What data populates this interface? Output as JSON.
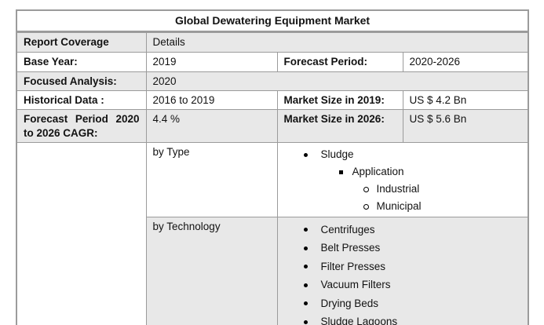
{
  "table": {
    "title": "Global Dewatering Equipment Market",
    "rows": {
      "report_coverage": {
        "label": "Report Coverage",
        "value": "Details"
      },
      "base_year": {
        "label": "Base Year:",
        "value": "2019"
      },
      "forecast_period": {
        "label": "Forecast Period:",
        "value": "2020-2026"
      },
      "focused_analysis": {
        "label": "Focused Analysis:",
        "value": "2020"
      },
      "historical_data": {
        "label": "Historical Data :",
        "value": "2016 to 2019"
      },
      "market_size_2019": {
        "label": "Market Size in 2019:",
        "value": "US $ 4.2 Bn"
      },
      "forecast_cagr": {
        "label": "Forecast Period 2020 to 2026 CAGR:",
        "value": "4.4 %"
      },
      "market_size_2026": {
        "label": "Market Size in 2026:",
        "value": "US $ 5.6 Bn"
      }
    },
    "segments": {
      "by_type": {
        "label": "by Type",
        "items": [
          {
            "text": "Sludge",
            "level": 1,
            "marker": "disc"
          },
          {
            "text": "Application",
            "level": 2,
            "marker": "square"
          },
          {
            "text": "Industrial",
            "level": 3,
            "marker": "circle"
          },
          {
            "text": "Municipal",
            "level": 3,
            "marker": "circle"
          }
        ]
      },
      "by_technology": {
        "label": "by Technology",
        "items": [
          {
            "text": "Centrifuges",
            "level": 1,
            "marker": "disc"
          },
          {
            "text": "Belt Presses",
            "level": 1,
            "marker": "disc"
          },
          {
            "text": "Filter Presses",
            "level": 1,
            "marker": "disc"
          },
          {
            "text": "Vacuum Filters",
            "level": 1,
            "marker": "disc"
          },
          {
            "text": "Drying Beds",
            "level": 1,
            "marker": "disc"
          },
          {
            "text": "Sludge Lagoons",
            "level": 1,
            "marker": "disc"
          }
        ]
      }
    },
    "colors": {
      "shaded_row_bg": "#e8e8e8",
      "border": "#9b9b9b",
      "text": "#121212"
    }
  }
}
